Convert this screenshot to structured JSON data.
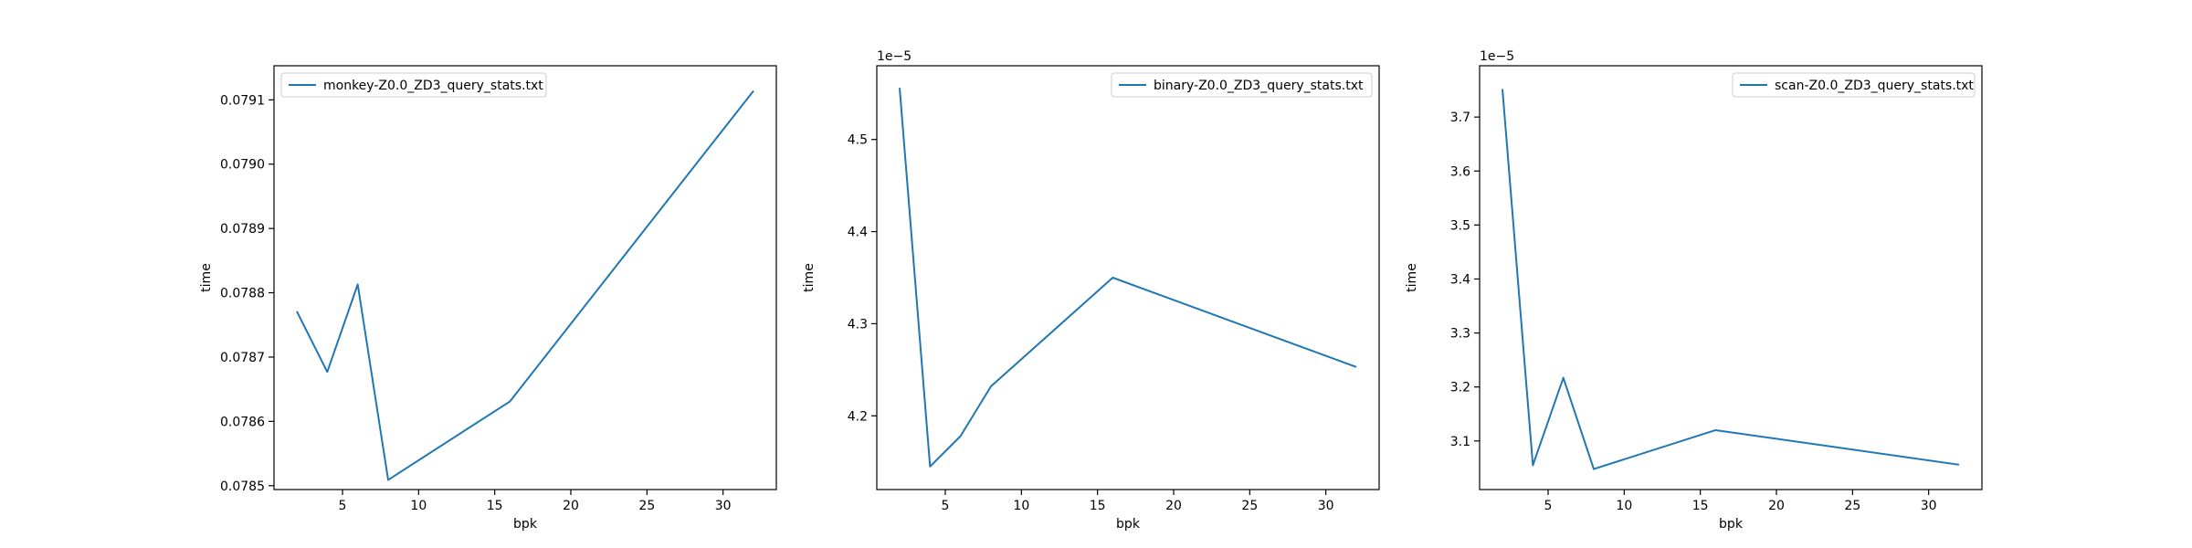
{
  "chart_data": [
    {
      "type": "line",
      "title": "",
      "xlabel": "bpk",
      "ylabel": "time",
      "offset_label": "",
      "xlim": [
        0.5,
        33.5
      ],
      "ylim": [
        0.078494,
        0.079153
      ],
      "xticks": [
        5,
        10,
        15,
        20,
        25,
        30
      ],
      "yticks": [
        0.0785,
        0.0786,
        0.0787,
        0.0788,
        0.0789,
        0.079,
        0.0791
      ],
      "ytick_labels": [
        "0.0785",
        "0.0786",
        "0.0787",
        "0.0788",
        "0.0789",
        "0.0790",
        "0.0791"
      ],
      "grid": false,
      "legend_position": "top-left",
      "color": "#1f77b4",
      "series": [
        {
          "name": "monkey-Z0.0_ZD3_query_stats.txt",
          "x": [
            2,
            4,
            6,
            8,
            16,
            32
          ],
          "y": [
            0.078771,
            0.078677,
            0.078813,
            0.078509,
            0.078631,
            0.079114
          ]
        }
      ]
    },
    {
      "type": "line",
      "title": "",
      "xlabel": "bpk",
      "ylabel": "time",
      "offset_label": "1e−5",
      "xlim": [
        0.5,
        33.5
      ],
      "ylim": [
        4.12,
        4.58
      ],
      "xticks": [
        5,
        10,
        15,
        20,
        25,
        30
      ],
      "yticks": [
        4.2,
        4.3,
        4.4,
        4.5
      ],
      "ytick_labels": [
        "4.2",
        "4.3",
        "4.4",
        "4.5"
      ],
      "grid": false,
      "legend_position": "top-right",
      "color": "#1f77b4",
      "series": [
        {
          "name": "binary-Z0.0_ZD3_query_stats.txt",
          "x": [
            2,
            4,
            6,
            8,
            16,
            32
          ],
          "y": [
            4.556,
            4.145,
            4.178,
            4.232,
            4.35,
            4.253
          ]
        }
      ]
    },
    {
      "type": "line",
      "title": "",
      "xlabel": "bpk",
      "ylabel": "time",
      "offset_label": "1e−5",
      "xlim": [
        0.5,
        33.5
      ],
      "ylim": [
        3.01,
        3.795
      ],
      "xticks": [
        5,
        10,
        15,
        20,
        25,
        30
      ],
      "yticks": [
        3.1,
        3.2,
        3.3,
        3.4,
        3.5,
        3.6,
        3.7
      ],
      "ytick_labels": [
        "3.1",
        "3.2",
        "3.3",
        "3.4",
        "3.5",
        "3.6",
        "3.7"
      ],
      "grid": false,
      "legend_position": "top-right",
      "color": "#1f77b4",
      "series": [
        {
          "name": "scan-Z0.0_ZD3_query_stats.txt",
          "x": [
            2,
            4,
            6,
            8,
            16,
            32
          ],
          "y": [
            3.752,
            3.055,
            3.217,
            3.048,
            3.12,
            3.056
          ]
        }
      ]
    }
  ]
}
